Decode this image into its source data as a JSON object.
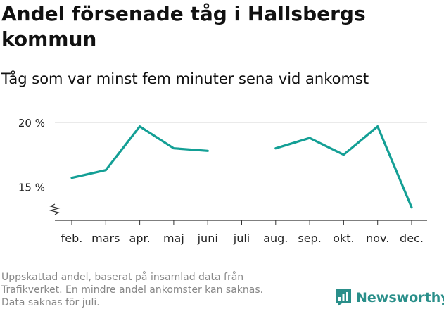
{
  "header": {
    "title": "Andel försenade tåg i Hallsbergs kommun",
    "subtitle": "Tåg som var minst fem minuter sena vid ankomst"
  },
  "chart_data": {
    "type": "line",
    "categories": [
      "feb.",
      "mars",
      "apr.",
      "maj",
      "juni",
      "juli",
      "aug.",
      "sep.",
      "okt.",
      "nov.",
      "dec."
    ],
    "series": [
      {
        "values": [
          15.7,
          16.3,
          19.7,
          18.0,
          17.8,
          null,
          18.0,
          18.8,
          17.5,
          19.7,
          13.4
        ]
      }
    ],
    "yticks": [
      15,
      20
    ],
    "ytick_labels": [
      "15 %",
      "20 %"
    ],
    "ylim": [
      12.4,
      20.5
    ],
    "y_axis_break": true,
    "grid": true,
    "line_color": "#139f95"
  },
  "footer": {
    "lines": [
      "Uppskattad andel, baserat på insamlad data från",
      "Trafikverket. En mindre andel ankomster kan saknas.",
      "Data saknas för juli."
    ]
  },
  "brand": {
    "name": "Newsworthy",
    "color": "#2a8f8a"
  }
}
